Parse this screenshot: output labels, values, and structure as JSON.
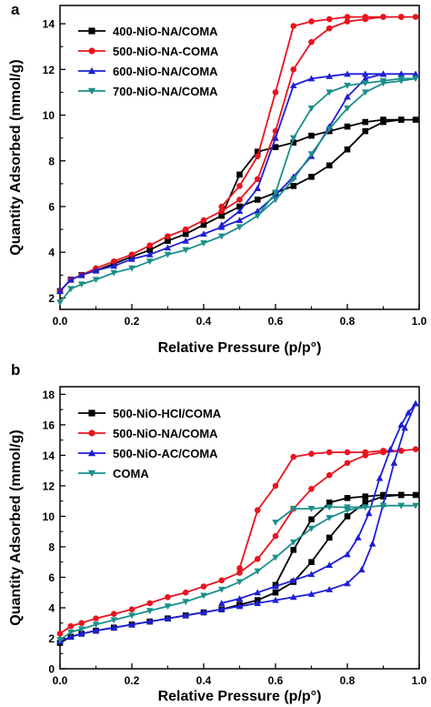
{
  "chart_data": [
    {
      "type": "line",
      "panel": "a",
      "xlabel": "Relative Pressure (p/p°)",
      "ylabel": "Quantity Adsorbed (mmol/g)",
      "xlim": [
        0,
        1.0
      ],
      "ylim": [
        1.5,
        14.8
      ],
      "xticks": [
        "0.0",
        "0.2",
        "0.4",
        "0.6",
        "0.8",
        "1.0"
      ],
      "yticks": [
        "2",
        "4",
        "6",
        "8",
        "10",
        "12",
        "14"
      ],
      "grid": false,
      "legend_position": "top-left",
      "series": [
        {
          "name": "400-NiO-NA/COMA",
          "color": "#000000",
          "marker": "square",
          "x": [
            0.0,
            0.03,
            0.06,
            0.1,
            0.15,
            0.2,
            0.25,
            0.3,
            0.35,
            0.4,
            0.45,
            0.5,
            0.55,
            0.6,
            0.65,
            0.7,
            0.75,
            0.8,
            0.85,
            0.9,
            0.95,
            0.99,
            0.95,
            0.9,
            0.85,
            0.8,
            0.75,
            0.7,
            0.65,
            0.6,
            0.55,
            0.5,
            0.45
          ],
          "y": [
            2.3,
            2.8,
            3.0,
            3.2,
            3.5,
            3.8,
            4.1,
            4.5,
            4.8,
            5.2,
            5.6,
            6.0,
            6.3,
            6.6,
            6.9,
            7.3,
            7.8,
            8.5,
            9.3,
            9.7,
            9.8,
            9.8,
            9.8,
            9.8,
            9.7,
            9.5,
            9.3,
            9.1,
            8.8,
            8.6,
            8.4,
            7.4,
            5.6
          ]
        },
        {
          "name": "500-NiO-NA-COMA",
          "color": "#e8141e",
          "marker": "circle",
          "x": [
            0.0,
            0.03,
            0.06,
            0.1,
            0.15,
            0.2,
            0.25,
            0.3,
            0.35,
            0.4,
            0.45,
            0.5,
            0.55,
            0.6,
            0.65,
            0.7,
            0.75,
            0.8,
            0.85,
            0.9,
            0.95,
            0.99,
            0.95,
            0.9,
            0.85,
            0.8,
            0.75,
            0.7,
            0.65,
            0.6,
            0.55,
            0.5,
            0.45
          ],
          "y": [
            2.3,
            2.8,
            3.0,
            3.3,
            3.6,
            3.9,
            4.3,
            4.7,
            5.0,
            5.4,
            5.8,
            6.3,
            7.2,
            9.3,
            12.0,
            13.2,
            13.8,
            14.1,
            14.2,
            14.3,
            14.3,
            14.3,
            14.3,
            14.3,
            14.3,
            14.3,
            14.2,
            14.1,
            13.9,
            11.0,
            8.2,
            6.9,
            6.0
          ]
        },
        {
          "name": "600-NiO-NA/COMA",
          "color": "#1f1fd6",
          "marker": "triangle-up",
          "x": [
            0.0,
            0.03,
            0.06,
            0.1,
            0.15,
            0.2,
            0.25,
            0.3,
            0.35,
            0.4,
            0.45,
            0.5,
            0.55,
            0.6,
            0.65,
            0.7,
            0.75,
            0.8,
            0.85,
            0.9,
            0.95,
            0.99,
            0.95,
            0.9,
            0.85,
            0.8,
            0.75,
            0.7,
            0.65,
            0.6,
            0.55,
            0.5,
            0.45
          ],
          "y": [
            2.3,
            2.8,
            3.0,
            3.2,
            3.4,
            3.7,
            3.9,
            4.2,
            4.5,
            4.8,
            5.1,
            5.4,
            5.8,
            6.5,
            7.3,
            8.2,
            9.5,
            10.8,
            11.6,
            11.8,
            11.8,
            11.8,
            11.8,
            11.8,
            11.8,
            11.8,
            11.7,
            11.6,
            11.3,
            9.0,
            6.8,
            5.8,
            5.2
          ]
        },
        {
          "name": "700-NiO-NA/COMA",
          "color": "#1a8f8a",
          "marker": "triangle-down",
          "x": [
            0.0,
            0.03,
            0.06,
            0.1,
            0.15,
            0.2,
            0.25,
            0.3,
            0.35,
            0.4,
            0.45,
            0.5,
            0.55,
            0.6,
            0.65,
            0.7,
            0.75,
            0.8,
            0.85,
            0.9,
            0.95,
            0.99,
            0.95,
            0.9,
            0.85,
            0.8,
            0.75,
            0.7,
            0.65,
            0.6,
            0.55
          ],
          "y": [
            1.8,
            2.4,
            2.6,
            2.8,
            3.1,
            3.3,
            3.6,
            3.9,
            4.1,
            4.4,
            4.7,
            5.1,
            5.6,
            6.3,
            7.2,
            8.3,
            9.4,
            10.3,
            11.0,
            11.4,
            11.5,
            11.6,
            11.6,
            11.5,
            11.4,
            11.3,
            11.0,
            10.3,
            9.0,
            6.6,
            5.6
          ]
        }
      ]
    },
    {
      "type": "line",
      "panel": "b",
      "xlabel": "Relative Pressure (p/p°)",
      "ylabel": "Quantity Adsorbed (mmol/g)",
      "xlim": [
        0,
        1.0
      ],
      "ylim": [
        0,
        18.5
      ],
      "xticks": [
        "0.0",
        "0.2",
        "0.4",
        "0.6",
        "0.8",
        "1.0"
      ],
      "yticks": [
        "0",
        "2",
        "4",
        "6",
        "8",
        "10",
        "12",
        "14",
        "16",
        "18"
      ],
      "grid": false,
      "legend_position": "top-left",
      "series": [
        {
          "name": "500-NiO-HCl/COMA",
          "color": "#000000",
          "marker": "square",
          "x": [
            0.0,
            0.03,
            0.06,
            0.1,
            0.15,
            0.2,
            0.25,
            0.3,
            0.35,
            0.4,
            0.45,
            0.5,
            0.55,
            0.6,
            0.65,
            0.7,
            0.75,
            0.8,
            0.85,
            0.9,
            0.95,
            0.99,
            0.95,
            0.9,
            0.85,
            0.8,
            0.75,
            0.7,
            0.65,
            0.6
          ],
          "y": [
            1.7,
            2.1,
            2.3,
            2.5,
            2.7,
            2.9,
            3.1,
            3.3,
            3.5,
            3.7,
            3.9,
            4.2,
            4.5,
            5.0,
            5.7,
            7.0,
            8.6,
            10.0,
            10.9,
            11.3,
            11.4,
            11.4,
            11.4,
            11.4,
            11.3,
            11.2,
            10.9,
            9.8,
            7.8,
            5.5
          ]
        },
        {
          "name": "500-NiO-NA/COMA",
          "color": "#e8141e",
          "marker": "circle",
          "x": [
            0.0,
            0.03,
            0.06,
            0.1,
            0.15,
            0.2,
            0.25,
            0.3,
            0.35,
            0.4,
            0.45,
            0.5,
            0.55,
            0.6,
            0.65,
            0.7,
            0.75,
            0.8,
            0.85,
            0.9,
            0.95,
            0.99,
            0.95,
            0.9,
            0.85,
            0.8,
            0.75,
            0.7,
            0.65,
            0.6,
            0.55,
            0.5
          ],
          "y": [
            2.3,
            2.8,
            3.0,
            3.3,
            3.6,
            3.9,
            4.3,
            4.7,
            5.0,
            5.4,
            5.8,
            6.3,
            7.2,
            8.7,
            10.5,
            11.8,
            12.7,
            13.5,
            14.0,
            14.2,
            14.3,
            14.4,
            14.3,
            14.3,
            14.2,
            14.2,
            14.2,
            14.1,
            13.9,
            12.0,
            10.4,
            6.6
          ]
        },
        {
          "name": "500-NiO-AC/COMA",
          "color": "#1f1fd6",
          "marker": "triangle-up",
          "x": [
            0.0,
            0.03,
            0.06,
            0.1,
            0.15,
            0.2,
            0.25,
            0.3,
            0.35,
            0.4,
            0.45,
            0.5,
            0.55,
            0.6,
            0.65,
            0.7,
            0.75,
            0.8,
            0.84,
            0.87,
            0.9,
            0.93,
            0.96,
            0.99,
            0.97,
            0.95,
            0.92,
            0.89,
            0.86,
            0.83,
            0.8,
            0.75,
            0.7,
            0.65,
            0.6,
            0.55,
            0.5,
            0.45
          ],
          "y": [
            1.8,
            2.1,
            2.3,
            2.5,
            2.7,
            2.9,
            3.1,
            3.3,
            3.5,
            3.7,
            3.9,
            4.1,
            4.3,
            4.5,
            4.7,
            4.9,
            5.2,
            5.6,
            6.5,
            8.2,
            10.8,
            13.5,
            15.8,
            17.4,
            16.8,
            16.0,
            14.4,
            12.5,
            10.2,
            8.6,
            7.5,
            6.8,
            6.2,
            5.8,
            5.4,
            5.0,
            4.6,
            4.3
          ]
        },
        {
          "name": "COMA",
          "color": "#1a8f8a",
          "marker": "triangle-down",
          "x": [
            0.0,
            0.03,
            0.06,
            0.1,
            0.15,
            0.2,
            0.25,
            0.3,
            0.35,
            0.4,
            0.45,
            0.5,
            0.55,
            0.6,
            0.65,
            0.7,
            0.75,
            0.8,
            0.85,
            0.9,
            0.95,
            0.99,
            0.95,
            0.9,
            0.85,
            0.8,
            0.75,
            0.7,
            0.65,
            0.6
          ],
          "y": [
            1.9,
            2.4,
            2.6,
            2.9,
            3.2,
            3.5,
            3.8,
            4.1,
            4.4,
            4.8,
            5.2,
            5.7,
            6.4,
            7.3,
            8.3,
            9.2,
            9.9,
            10.4,
            10.6,
            10.7,
            10.7,
            10.7,
            10.7,
            10.7,
            10.6,
            10.6,
            10.6,
            10.5,
            10.5,
            9.6
          ]
        }
      ]
    }
  ]
}
